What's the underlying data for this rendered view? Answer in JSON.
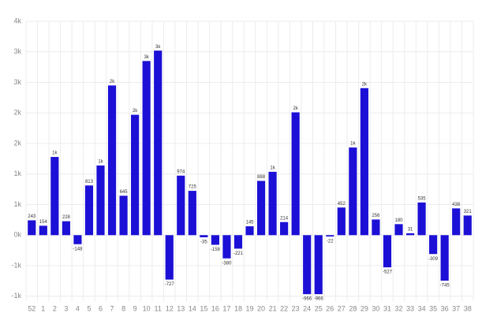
{
  "chart_data": {
    "type": "bar",
    "categories": [
      "52",
      "1",
      "2",
      "3",
      "4",
      "5",
      "6",
      "7",
      "8",
      "9",
      "10",
      "11",
      "12",
      "13",
      "14",
      "15",
      "16",
      "17",
      "18",
      "19",
      "20",
      "21",
      "22",
      "23",
      "24",
      "25",
      "26",
      "27",
      "28",
      "29",
      "30",
      "31",
      "32",
      "33",
      "34",
      "35",
      "36",
      "37",
      "38"
    ],
    "values": [
      243,
      154,
      1280,
      228,
      -148,
      813,
      1140,
      2450,
      645,
      1970,
      2850,
      3020,
      -727,
      974,
      725,
      -35,
      -158,
      -380,
      -221,
      145,
      888,
      1037,
      214,
      2010,
      -966,
      -966,
      -22,
      452,
      1434,
      2406,
      256,
      -527,
      180,
      31,
      535,
      -309,
      -745,
      438,
      321
    ],
    "value_labels": [
      "243",
      "154",
      "1k",
      "228",
      "-148",
      "813",
      "1k",
      "2k",
      "645",
      "2k",
      "3k",
      "3k",
      "-727",
      "974",
      "725",
      "-35",
      "-158",
      "-380",
      "-221",
      "145",
      "888",
      "1k",
      "214",
      "2k",
      "-966",
      "-966",
      "-22",
      "452",
      "1k",
      "2k",
      "256",
      "-527",
      "180",
      "31",
      "535",
      "-309",
      "-745",
      "438",
      "321"
    ],
    "color": "#1c10d6",
    "ylim": [
      -1080,
      3500
    ],
    "yticks": [
      {
        "value": -1000,
        "label": "-1k"
      },
      {
        "value": -500,
        "label": "-1k"
      },
      {
        "value": 0,
        "label": "0k"
      },
      {
        "value": 500,
        "label": "1k"
      },
      {
        "value": 1000,
        "label": "1k"
      },
      {
        "value": 1500,
        "label": "2k"
      },
      {
        "value": 2000,
        "label": "2k"
      },
      {
        "value": 2500,
        "label": "3k"
      },
      {
        "value": 3000,
        "label": "3k"
      },
      {
        "value": 3500,
        "label": "4k"
      }
    ],
    "grid": true
  }
}
